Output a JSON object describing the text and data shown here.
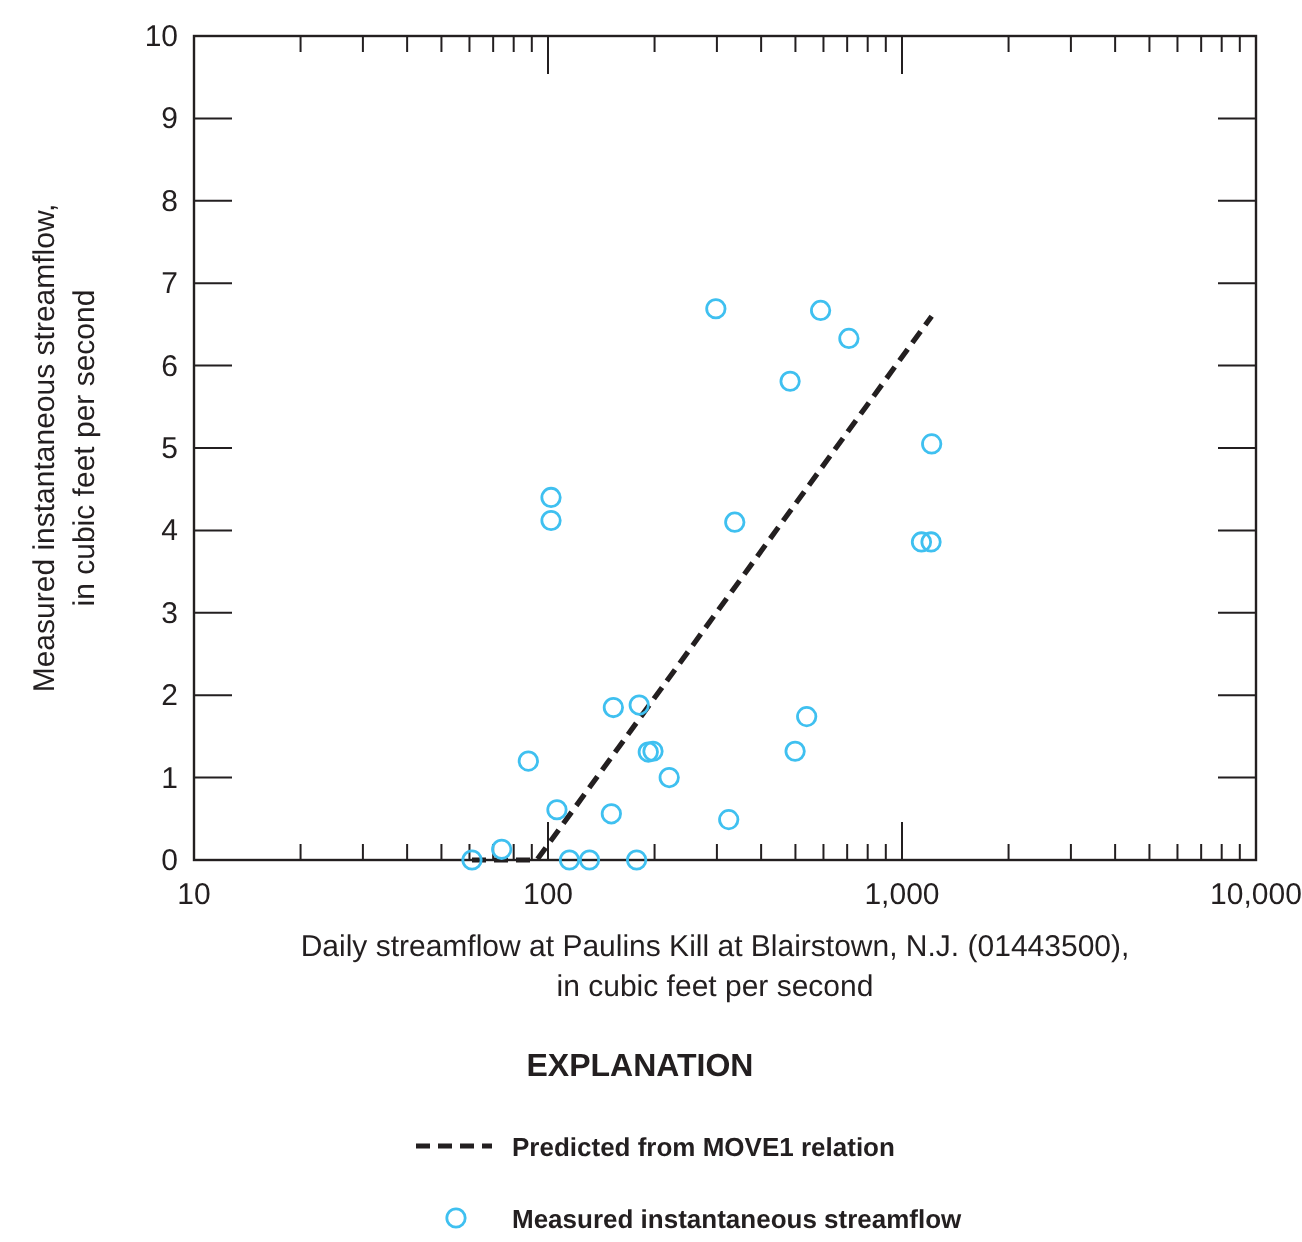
{
  "chart_data": {
    "type": "scatter",
    "xlabel": "Daily streamflow at Paulins Kill at Blairstown, N.J. (01443500), in cubic feet per second",
    "ylabel": "Measured instantaneous streamflow, in cubic feet per second",
    "legend_title": "EXPLANATION",
    "legend": "bottom",
    "log": "x",
    "xlim": [
      10,
      10000
    ],
    "ylim": [
      0,
      10
    ],
    "xticks": [
      10,
      {
        "value": 20,
        "label": null
      },
      {
        "value": 30,
        "label": null
      },
      {
        "value": 40,
        "label": null
      },
      {
        "value": 50,
        "label": null
      },
      {
        "value": 60,
        "label": null
      },
      {
        "value": 70,
        "label": null
      },
      {
        "value": 80,
        "label": null
      },
      {
        "value": 90,
        "label": null
      },
      100,
      {
        "value": 200,
        "label": null
      },
      {
        "value": 300,
        "label": null
      },
      {
        "value": 400,
        "label": null
      },
      {
        "value": 500,
        "label": null
      },
      {
        "value": 600,
        "label": null
      },
      {
        "value": 700,
        "label": null
      },
      {
        "value": 800,
        "label": null
      },
      {
        "value": 900,
        "label": null
      },
      {
        "value": 1000,
        "label": "1,000"
      },
      {
        "value": 2000,
        "label": null
      },
      {
        "value": 3000,
        "label": null
      },
      {
        "value": 4000,
        "label": null
      },
      {
        "value": 5000,
        "label": null
      },
      {
        "value": 6000,
        "label": null
      },
      {
        "value": 7000,
        "label": null
      },
      {
        "value": 8000,
        "label": null
      },
      {
        "value": 9000,
        "label": null
      },
      {
        "value": 10000,
        "label": "10,000"
      }
    ],
    "yticks": [
      0,
      1,
      2,
      3,
      4,
      5,
      6,
      7,
      8,
      9,
      10
    ],
    "series": [
      {
        "name": "Predicted from MOVE1 relation",
        "type": "line",
        "color": "#231f20",
        "line_style": "dashed",
        "marker": "none",
        "x": [
          61,
          93,
          1213
        ],
        "values": [
          0,
          0,
          6.6
        ]
      },
      {
        "name": "Measured instantaneous streamflow",
        "type": "scatter",
        "color": "#3fc0f0",
        "marker": "circle",
        "x": [
          61,
          74,
          88,
          102,
          102,
          106,
          115,
          131,
          151,
          153,
          178,
          181,
          192,
          198,
          220,
          298,
          324,
          337,
          483,
          499,
          538,
          589,
          708,
          1135,
          1208,
          1213
        ],
        "values": [
          0,
          0.13,
          1.2,
          4.4,
          4.12,
          0.61,
          0,
          0,
          0.56,
          1.85,
          0,
          1.88,
          1.31,
          1.32,
          1.0,
          6.69,
          0.49,
          4.1,
          5.81,
          1.32,
          1.74,
          6.67,
          6.33,
          3.86,
          3.86,
          5.05
        ]
      }
    ]
  }
}
